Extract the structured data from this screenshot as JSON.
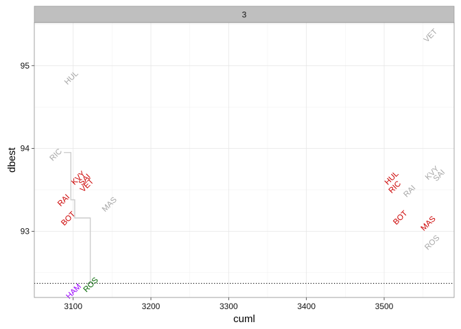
{
  "chart_data": {
    "type": "scatter",
    "facet_label": "3",
    "xlabel": "cuml",
    "ylabel": "dbest",
    "xlim": [
      3050,
      3590
    ],
    "ylim": [
      92.2,
      95.52
    ],
    "x_ticks": [
      3100,
      3200,
      3300,
      3400,
      3500
    ],
    "y_ticks": [
      93,
      94,
      95
    ],
    "grid": true,
    "reference_line": {
      "y": 92.37,
      "style": "dotted"
    },
    "step_line": [
      {
        "x": 3088,
        "y": 93.95
      },
      {
        "x": 3097,
        "y": 93.95
      },
      {
        "x": 3097,
        "y": 93.38
      },
      {
        "x": 3102,
        "y": 93.38
      },
      {
        "x": 3102,
        "y": 93.16
      },
      {
        "x": 3122,
        "y": 93.16
      },
      {
        "x": 3122,
        "y": 92.37
      }
    ],
    "colors": {
      "grey": "#a6a6a6",
      "red": "#cc0000",
      "purple": "#9900ff",
      "green": "#006600",
      "step": "#cccccc"
    },
    "labels": [
      {
        "text": "VET",
        "x": 3560,
        "y": 95.36,
        "color": "grey"
      },
      {
        "text": "HUL",
        "x": 3098,
        "y": 94.85,
        "color": "grey"
      },
      {
        "text": "RIC",
        "x": 3078,
        "y": 93.92,
        "color": "grey"
      },
      {
        "text": "KVY",
        "x": 3107,
        "y": 93.64,
        "color": "red"
      },
      {
        "text": "SAI",
        "x": 3115,
        "y": 93.62,
        "color": "red"
      },
      {
        "text": "VET",
        "x": 3118,
        "y": 93.55,
        "color": "red"
      },
      {
        "text": "RAI",
        "x": 3088,
        "y": 93.37,
        "color": "red"
      },
      {
        "text": "MAS",
        "x": 3147,
        "y": 93.32,
        "color": "grey"
      },
      {
        "text": "BOT",
        "x": 3094,
        "y": 93.15,
        "color": "red"
      },
      {
        "text": "HAM",
        "x": 3101,
        "y": 92.27,
        "color": "purple"
      },
      {
        "text": "ROS",
        "x": 3123,
        "y": 92.35,
        "color": "green"
      },
      {
        "text": "HUL",
        "x": 3510,
        "y": 93.64,
        "color": "red"
      },
      {
        "text": "RIC",
        "x": 3514,
        "y": 93.53,
        "color": "red"
      },
      {
        "text": "RAI",
        "x": 3533,
        "y": 93.48,
        "color": "grey"
      },
      {
        "text": "KVY",
        "x": 3562,
        "y": 93.7,
        "color": "grey"
      },
      {
        "text": "SAI",
        "x": 3571,
        "y": 93.67,
        "color": "grey"
      },
      {
        "text": "BOT",
        "x": 3521,
        "y": 93.16,
        "color": "red"
      },
      {
        "text": "MAS",
        "x": 3557,
        "y": 93.09,
        "color": "red"
      },
      {
        "text": "ROS",
        "x": 3562,
        "y": 92.86,
        "color": "grey"
      }
    ]
  }
}
